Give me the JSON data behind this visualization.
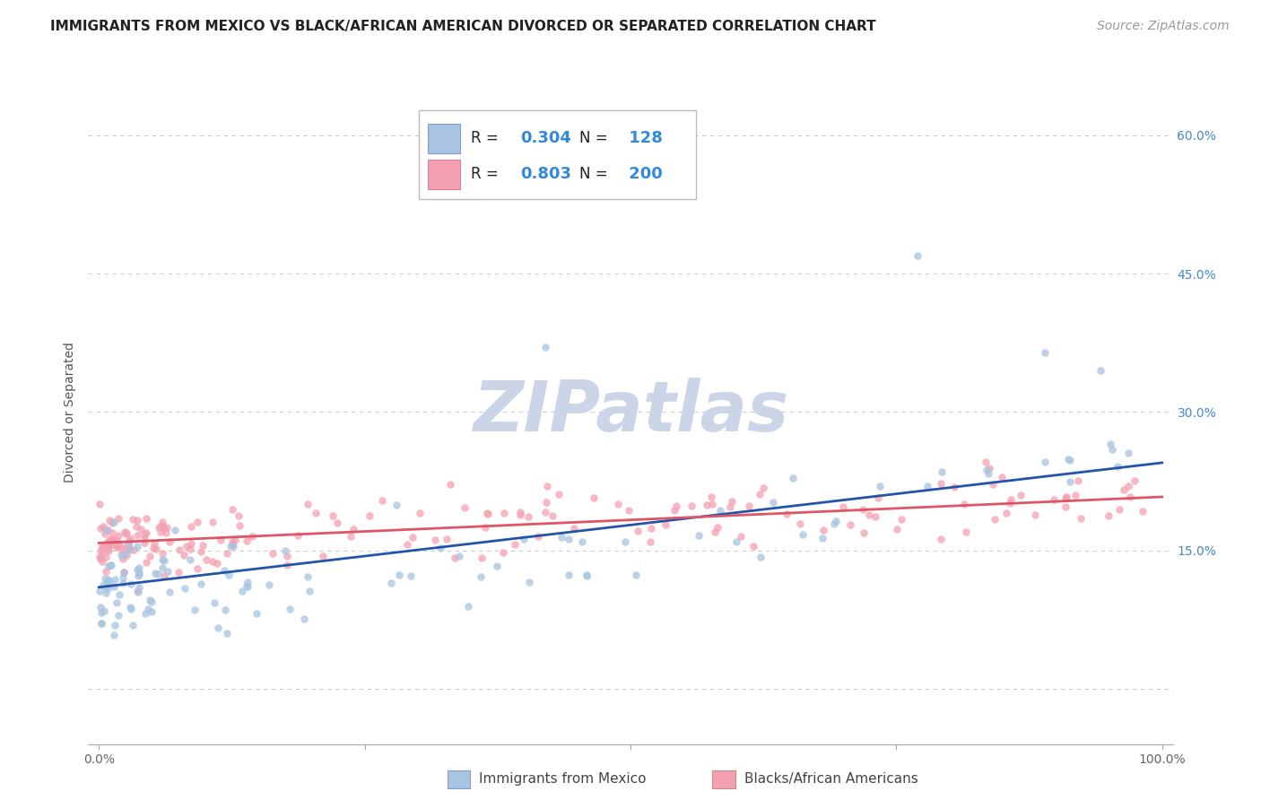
{
  "title": "IMMIGRANTS FROM MEXICO VS BLACK/AFRICAN AMERICAN DIVORCED OR SEPARATED CORRELATION CHART",
  "source": "Source: ZipAtlas.com",
  "ylabel": "Divorced or Separated",
  "ymin": -0.06,
  "ymax": 0.66,
  "xmin": -0.01,
  "xmax": 1.01,
  "ytick_vals": [
    0.0,
    0.15,
    0.3,
    0.45,
    0.6
  ],
  "ytick_labels": [
    "",
    "15.0%",
    "30.0%",
    "45.0%",
    "60.0%"
  ],
  "xtick_vals": [
    0.0,
    0.25,
    0.5,
    0.75,
    1.0
  ],
  "xtick_labels": [
    "0.0%",
    "",
    "",
    "",
    "100.0%"
  ],
  "legend_r1": "0.304",
  "legend_n1": "128",
  "legend_r2": "0.803",
  "legend_n2": "200",
  "legend_label1": "Immigrants from Mexico",
  "legend_label2": "Blacks/African Americans",
  "watermark": "ZIPatlas",
  "scatter_blue_color": "#a8c4e0",
  "scatter_pink_color": "#f4a0b0",
  "scatter_alpha": 0.75,
  "scatter_size": 38,
  "line_blue_color": "#2255aa",
  "line_pink_color": "#dd5566",
  "line_blue_y0": 0.11,
  "line_blue_y1": 0.245,
  "line_pink_y0": 0.158,
  "line_pink_y1": 0.208,
  "grid_color": "#cccccc",
  "background_color": "#ffffff",
  "title_fontsize": 11,
  "axis_label_fontsize": 10,
  "tick_fontsize": 10,
  "source_fontsize": 10,
  "watermark_color": "#ccd5e8",
  "watermark_fontsize": 56
}
